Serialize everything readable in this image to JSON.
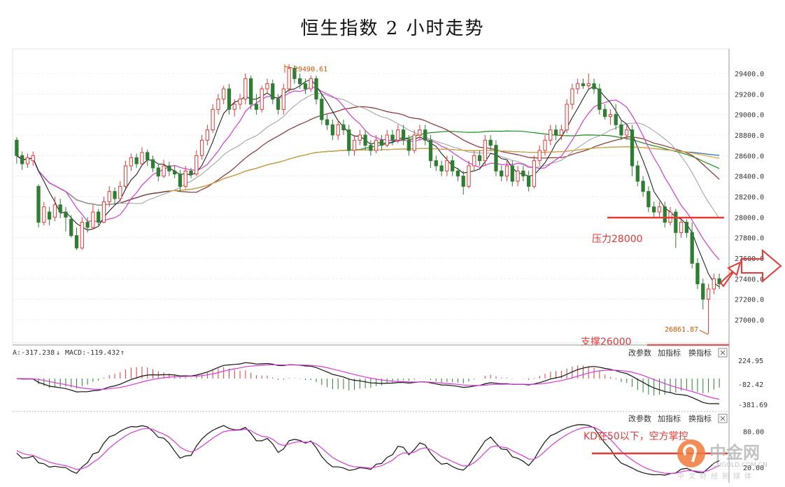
{
  "title": "恒生指数 2 小时走势",
  "chart_data": {
    "type": "candlestick",
    "title": "恒生指数 2 小时走势",
    "ylim": [
      26800,
      29700
    ],
    "y_ticks": [
      "29400.0",
      "29200.0",
      "29000.0",
      "28800.0",
      "28600.0",
      "28400.0",
      "28200.0",
      "28000.0",
      "27800.0",
      "27600.0",
      "27400.0",
      "27200.0",
      "27000.0"
    ],
    "y_tick_values": [
      29400,
      29200,
      29000,
      28800,
      28600,
      28400,
      28200,
      28000,
      27800,
      27600,
      27400,
      27200,
      27000
    ],
    "high_label": "29490.61",
    "low_label": "26861.87",
    "annotations": {
      "resistance": "压力28000",
      "support": "支撑26000",
      "kd_note": "KD在50以下，空方掌控"
    },
    "resistance_value": 28000,
    "candles": [
      [
        28750,
        28600,
        28780,
        28520
      ],
      [
        28600,
        28520,
        28640,
        28460
      ],
      [
        28520,
        28580,
        28620,
        28480
      ],
      [
        28550,
        28600,
        28640,
        28500
      ],
      [
        28300,
        27950,
        28320,
        27900
      ],
      [
        27950,
        28100,
        28150,
        27920
      ],
      [
        28050,
        27980,
        28100,
        27920
      ],
      [
        28000,
        28120,
        28200,
        27960
      ],
      [
        28120,
        28050,
        28180,
        27990
      ],
      [
        28050,
        28000,
        28100,
        27860
      ],
      [
        27980,
        27820,
        28020,
        27800
      ],
      [
        27820,
        27700,
        27900,
        27680
      ],
      [
        27700,
        27950,
        28000,
        27680
      ],
      [
        27950,
        27900,
        28000,
        27850
      ],
      [
        27900,
        28050,
        28120,
        27880
      ],
      [
        28050,
        27950,
        28080,
        27920
      ],
      [
        27950,
        28150,
        28200,
        27940
      ],
      [
        28150,
        28250,
        28300,
        28100
      ],
      [
        28250,
        28180,
        28290,
        28120
      ],
      [
        28180,
        28300,
        28350,
        28150
      ],
      [
        28300,
        28500,
        28550,
        28280
      ],
      [
        28500,
        28580,
        28620,
        28450
      ],
      [
        28580,
        28520,
        28620,
        28480
      ],
      [
        28520,
        28630,
        28680,
        28500
      ],
      [
        28630,
        28560,
        28660,
        28500
      ],
      [
        28560,
        28480,
        28600,
        28440
      ],
      [
        28480,
        28400,
        28520,
        28350
      ],
      [
        28400,
        28500,
        28560,
        28380
      ],
      [
        28500,
        28450,
        28540,
        28400
      ],
      [
        28450,
        28420,
        28500,
        28380
      ],
      [
        28420,
        28300,
        28460,
        28250
      ],
      [
        28300,
        28450,
        28500,
        28280
      ],
      [
        28450,
        28420,
        28480,
        28380
      ],
      [
        28420,
        28600,
        28650,
        28400
      ],
      [
        28600,
        28750,
        28800,
        28560
      ],
      [
        28750,
        28850,
        28900,
        28700
      ],
      [
        28850,
        29050,
        29100,
        28820
      ],
      [
        29050,
        29150,
        29200,
        29000
      ],
      [
        29150,
        29250,
        29280,
        29100
      ],
      [
        29250,
        29050,
        29300,
        29000
      ],
      [
        29050,
        29100,
        29150,
        28980
      ],
      [
        29100,
        29150,
        29200,
        29050
      ],
      [
        29150,
        29350,
        29400,
        29100
      ],
      [
        29350,
        29100,
        29380,
        29050
      ],
      [
        29100,
        29050,
        29200,
        29000
      ],
      [
        29050,
        29250,
        29280,
        29020
      ],
      [
        29250,
        29300,
        29350,
        29200
      ],
      [
        29300,
        29150,
        29340,
        29100
      ],
      [
        29150,
        29050,
        29200,
        29000
      ],
      [
        29050,
        29250,
        29300,
        29000
      ],
      [
        29250,
        29450,
        29490,
        29220
      ],
      [
        29450,
        29350,
        29480,
        29300
      ],
      [
        29350,
        29300,
        29400,
        29250
      ],
      [
        29300,
        29250,
        29350,
        29200
      ],
      [
        29250,
        29350,
        29380,
        29220
      ],
      [
        29350,
        29150,
        29380,
        29100
      ],
      [
        29150,
        28950,
        29200,
        28900
      ],
      [
        28950,
        28900,
        29000,
        28850
      ],
      [
        28900,
        28800,
        28950,
        28750
      ],
      [
        28800,
        28900,
        28950,
        28750
      ],
      [
        28900,
        28850,
        28950,
        28800
      ],
      [
        28850,
        28650,
        28900,
        28600
      ],
      [
        28650,
        28750,
        28800,
        28600
      ],
      [
        28750,
        28800,
        28850,
        28700
      ],
      [
        28800,
        28700,
        28850,
        28650
      ],
      [
        28700,
        28650,
        28750,
        28600
      ],
      [
        28650,
        28750,
        28800,
        28620
      ],
      [
        28750,
        28700,
        28800,
        28650
      ],
      [
        28700,
        28800,
        28850,
        28680
      ],
      [
        28800,
        28750,
        28850,
        28700
      ],
      [
        28750,
        28850,
        28900,
        28720
      ],
      [
        28850,
        28750,
        28900,
        28700
      ],
      [
        28750,
        28650,
        28800,
        28600
      ],
      [
        28650,
        28800,
        28850,
        28620
      ],
      [
        28800,
        28850,
        28900,
        28750
      ],
      [
        28850,
        28750,
        28900,
        28700
      ],
      [
        28750,
        28550,
        28800,
        28480
      ],
      [
        28550,
        28500,
        28600,
        28450
      ],
      [
        28500,
        28450,
        28550,
        28400
      ],
      [
        28450,
        28550,
        28600,
        28400
      ],
      [
        28550,
        28450,
        28600,
        28400
      ],
      [
        28450,
        28400,
        28480,
        28350
      ],
      [
        28400,
        28300,
        28450,
        28220
      ],
      [
        28300,
        28500,
        28550,
        28280
      ],
      [
        28500,
        28600,
        28650,
        28450
      ],
      [
        28600,
        28550,
        28650,
        28500
      ],
      [
        28550,
        28750,
        28800,
        28500
      ],
      [
        28750,
        28700,
        28800,
        28650
      ],
      [
        28700,
        28450,
        28750,
        28400
      ],
      [
        28450,
        28400,
        28500,
        28350
      ],
      [
        28400,
        28500,
        28550,
        28350
      ],
      [
        28500,
        28350,
        28550,
        28300
      ],
      [
        28350,
        28450,
        28500,
        28300
      ],
      [
        28450,
        28400,
        28500,
        28350
      ],
      [
        28400,
        28300,
        28450,
        28250
      ],
      [
        28300,
        28550,
        28600,
        28280
      ],
      [
        28550,
        28650,
        28700,
        28500
      ],
      [
        28650,
        28750,
        28800,
        28600
      ],
      [
        28750,
        28850,
        28900,
        28700
      ],
      [
        28850,
        28800,
        28900,
        28750
      ],
      [
        28800,
        28850,
        28900,
        28750
      ],
      [
        28850,
        29100,
        29150,
        28820
      ],
      [
        29100,
        29250,
        29300,
        29050
      ],
      [
        29250,
        29300,
        29350,
        29200
      ],
      [
        29300,
        29280,
        29350,
        29250
      ],
      [
        29280,
        29300,
        29400,
        29250
      ],
      [
        29300,
        29250,
        29350,
        29200
      ],
      [
        29250,
        29050,
        29300,
        29000
      ],
      [
        29050,
        28980,
        29100,
        28950
      ],
      [
        28980,
        29000,
        29050,
        28900
      ],
      [
        29000,
        28900,
        29100,
        28850
      ],
      [
        28900,
        28800,
        28950,
        28750
      ],
      [
        28800,
        28850,
        28900,
        28750
      ],
      [
        28850,
        28500,
        28900,
        28400
      ],
      [
        28500,
        28350,
        28550,
        28300
      ],
      [
        28350,
        28250,
        28400,
        28200
      ],
      [
        28250,
        28100,
        28300,
        28050
      ],
      [
        28100,
        28050,
        28150,
        28000
      ],
      [
        28050,
        28100,
        28150,
        28000
      ],
      [
        28100,
        27950,
        28150,
        27900
      ],
      [
        27950,
        28050,
        28100,
        27920
      ],
      [
        28050,
        27850,
        28080,
        27700
      ],
      [
        27850,
        27950,
        28000,
        27800
      ],
      [
        27950,
        27850,
        27980,
        27800
      ],
      [
        27850,
        27550,
        27950,
        27500
      ],
      [
        27550,
        27350,
        27600,
        27300
      ],
      [
        27350,
        27200,
        27400,
        27100
      ],
      [
        27200,
        27300,
        27350,
        26862
      ],
      [
        27300,
        27400,
        27450,
        27250
      ],
      [
        27400,
        27350,
        27450,
        27300
      ]
    ],
    "macd": {
      "label_a": "A:-317.238",
      "label_macd": "MACD:-119.432",
      "y_ticks": [
        "224.95",
        "-82.42",
        "-381.69"
      ]
    },
    "kd": {
      "y_ticks": [
        "80.00",
        "20.00"
      ]
    },
    "panel_controls": [
      "改参数",
      "加指标",
      "换指标"
    ]
  },
  "colors": {
    "up": "#e53935",
    "down": "#2e7d32",
    "ma5": "#111111",
    "ma10": "#d63ad6",
    "ma20": "#9e9e9e",
    "ma30": "#8b2f2f",
    "ma60": "#1b8a1b",
    "ma120": "#1e6fbf",
    "ma250": "#e0a030",
    "resistance": "#e53935"
  },
  "watermark": {
    "name": "中金网",
    "domain": "CNGOLD.COM.CN",
    "slogan": "中文财经新媒体"
  }
}
